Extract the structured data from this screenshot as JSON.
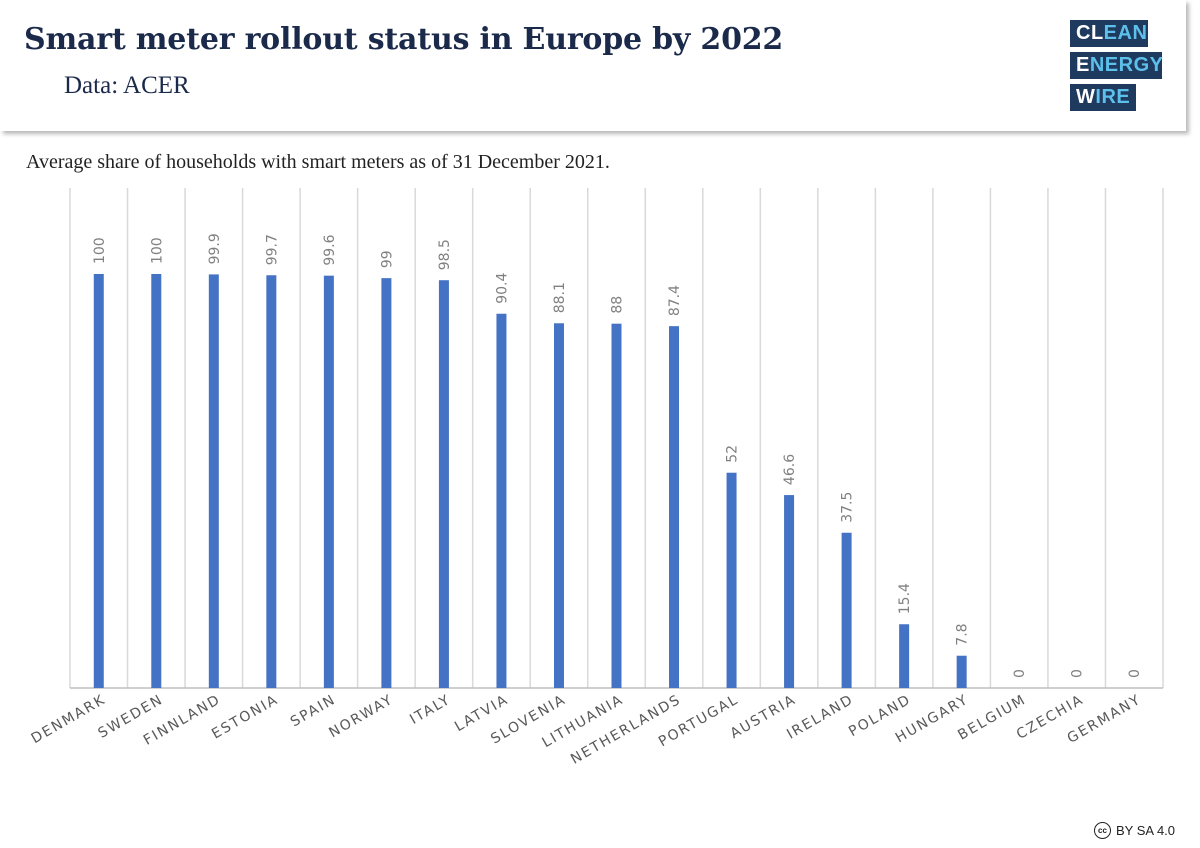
{
  "header": {
    "title": "Smart meter rollout status in Europe by 2022",
    "source": "Data: ACER"
  },
  "logo": {
    "line1_a": "CL",
    "line1_b": "EAN",
    "line2_a": "E",
    "line2_b": "NERGY",
    "line3_a": "W",
    "line3_b": "IRE"
  },
  "subtitle": "Average share of households with smart meters as of 31 December 2021.",
  "license": {
    "icon": "cc",
    "text": "BY SA 4.0"
  },
  "colors": {
    "bar": "#4472c4",
    "grid": "#d9d9d9",
    "axis": "#bfbfbf",
    "label": "#595959",
    "value_label": "#808080",
    "brand_dark": "#1e3a5f",
    "brand_light": "#5cc0ea"
  },
  "chart_data": {
    "type": "bar",
    "title": "Smart meter rollout status in Europe by 2022",
    "subtitle": "Average share of households with smart meters as of 31 December 2021.",
    "xlabel": "",
    "ylabel": "",
    "ylim": [
      0,
      100
    ],
    "grid": "vertical",
    "categories": [
      "DENMARK",
      "SWEDEN",
      "FINNLAND",
      "ESTONIA",
      "SPAIN",
      "NORWAY",
      "ITALY",
      "LATVIA",
      "SLOVENIA",
      "LITHUANIA",
      "NETHERLANDS",
      "PORTUGAL",
      "AUSTRIA",
      "IRELAND",
      "POLAND",
      "HUNGARY",
      "BELGIUM",
      "CZECHIA",
      "GERMANY"
    ],
    "values": [
      100,
      100,
      99.9,
      99.7,
      99.6,
      99,
      98.5,
      90.4,
      88.1,
      88,
      87.4,
      52,
      46.6,
      37.5,
      15.4,
      7.8,
      0,
      0,
      0
    ]
  }
}
